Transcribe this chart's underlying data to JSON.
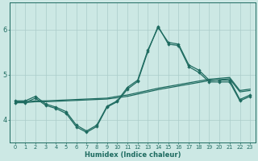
{
  "xlabel": "Humidex (Indice chaleur)",
  "bg_color": "#cce8e4",
  "line_color": "#1e6b60",
  "grid_color": "#aaccca",
  "xlim": [
    -0.5,
    23.5
  ],
  "ylim": [
    3.5,
    6.6
  ],
  "yticks": [
    4,
    5,
    6
  ],
  "xticks": [
    0,
    1,
    2,
    3,
    4,
    5,
    6,
    7,
    8,
    9,
    10,
    11,
    12,
    13,
    14,
    15,
    16,
    17,
    18,
    19,
    20,
    21,
    22,
    23
  ],
  "line1_x": [
    0,
    1,
    2,
    3,
    4,
    5,
    6,
    7,
    8,
    9,
    10,
    11,
    12,
    13,
    14,
    15,
    16,
    17,
    18,
    19,
    20,
    21,
    22,
    23
  ],
  "line1_y": [
    4.42,
    4.42,
    4.52,
    4.35,
    4.28,
    4.18,
    3.88,
    3.75,
    3.88,
    4.3,
    4.42,
    4.72,
    4.88,
    5.55,
    6.05,
    5.72,
    5.68,
    5.22,
    5.1,
    4.88,
    4.88,
    4.88,
    4.45,
    4.55
  ],
  "line2_x": [
    0,
    1,
    2,
    3,
    4,
    5,
    6,
    7,
    8,
    9,
    10,
    11,
    12,
    13,
    14,
    15,
    16,
    17,
    18,
    19,
    20,
    21,
    22,
    23
  ],
  "line2_y": [
    4.38,
    4.38,
    4.48,
    4.32,
    4.25,
    4.14,
    3.84,
    3.72,
    3.85,
    4.28,
    4.4,
    4.68,
    4.85,
    5.52,
    6.08,
    5.68,
    5.65,
    5.18,
    5.05,
    4.84,
    4.84,
    4.84,
    4.42,
    4.52
  ],
  "line3_x": [
    0,
    1,
    2,
    3,
    4,
    5,
    6,
    7,
    8,
    9,
    10,
    11,
    12,
    13,
    14,
    15,
    16,
    17,
    18,
    19,
    20,
    21,
    22,
    23
  ],
  "line3_y": [
    4.4,
    4.4,
    4.42,
    4.42,
    4.43,
    4.44,
    4.45,
    4.46,
    4.47,
    4.48,
    4.52,
    4.55,
    4.6,
    4.65,
    4.7,
    4.74,
    4.78,
    4.82,
    4.86,
    4.9,
    4.92,
    4.94,
    4.65,
    4.68
  ],
  "line4_x": [
    0,
    1,
    2,
    3,
    4,
    5,
    6,
    7,
    8,
    9,
    10,
    11,
    12,
    13,
    14,
    15,
    16,
    17,
    18,
    19,
    20,
    21,
    22,
    23
  ],
  "line4_y": [
    4.38,
    4.38,
    4.4,
    4.4,
    4.41,
    4.42,
    4.43,
    4.44,
    4.45,
    4.46,
    4.49,
    4.52,
    4.57,
    4.62,
    4.67,
    4.71,
    4.75,
    4.79,
    4.83,
    4.87,
    4.89,
    4.91,
    4.62,
    4.65
  ]
}
